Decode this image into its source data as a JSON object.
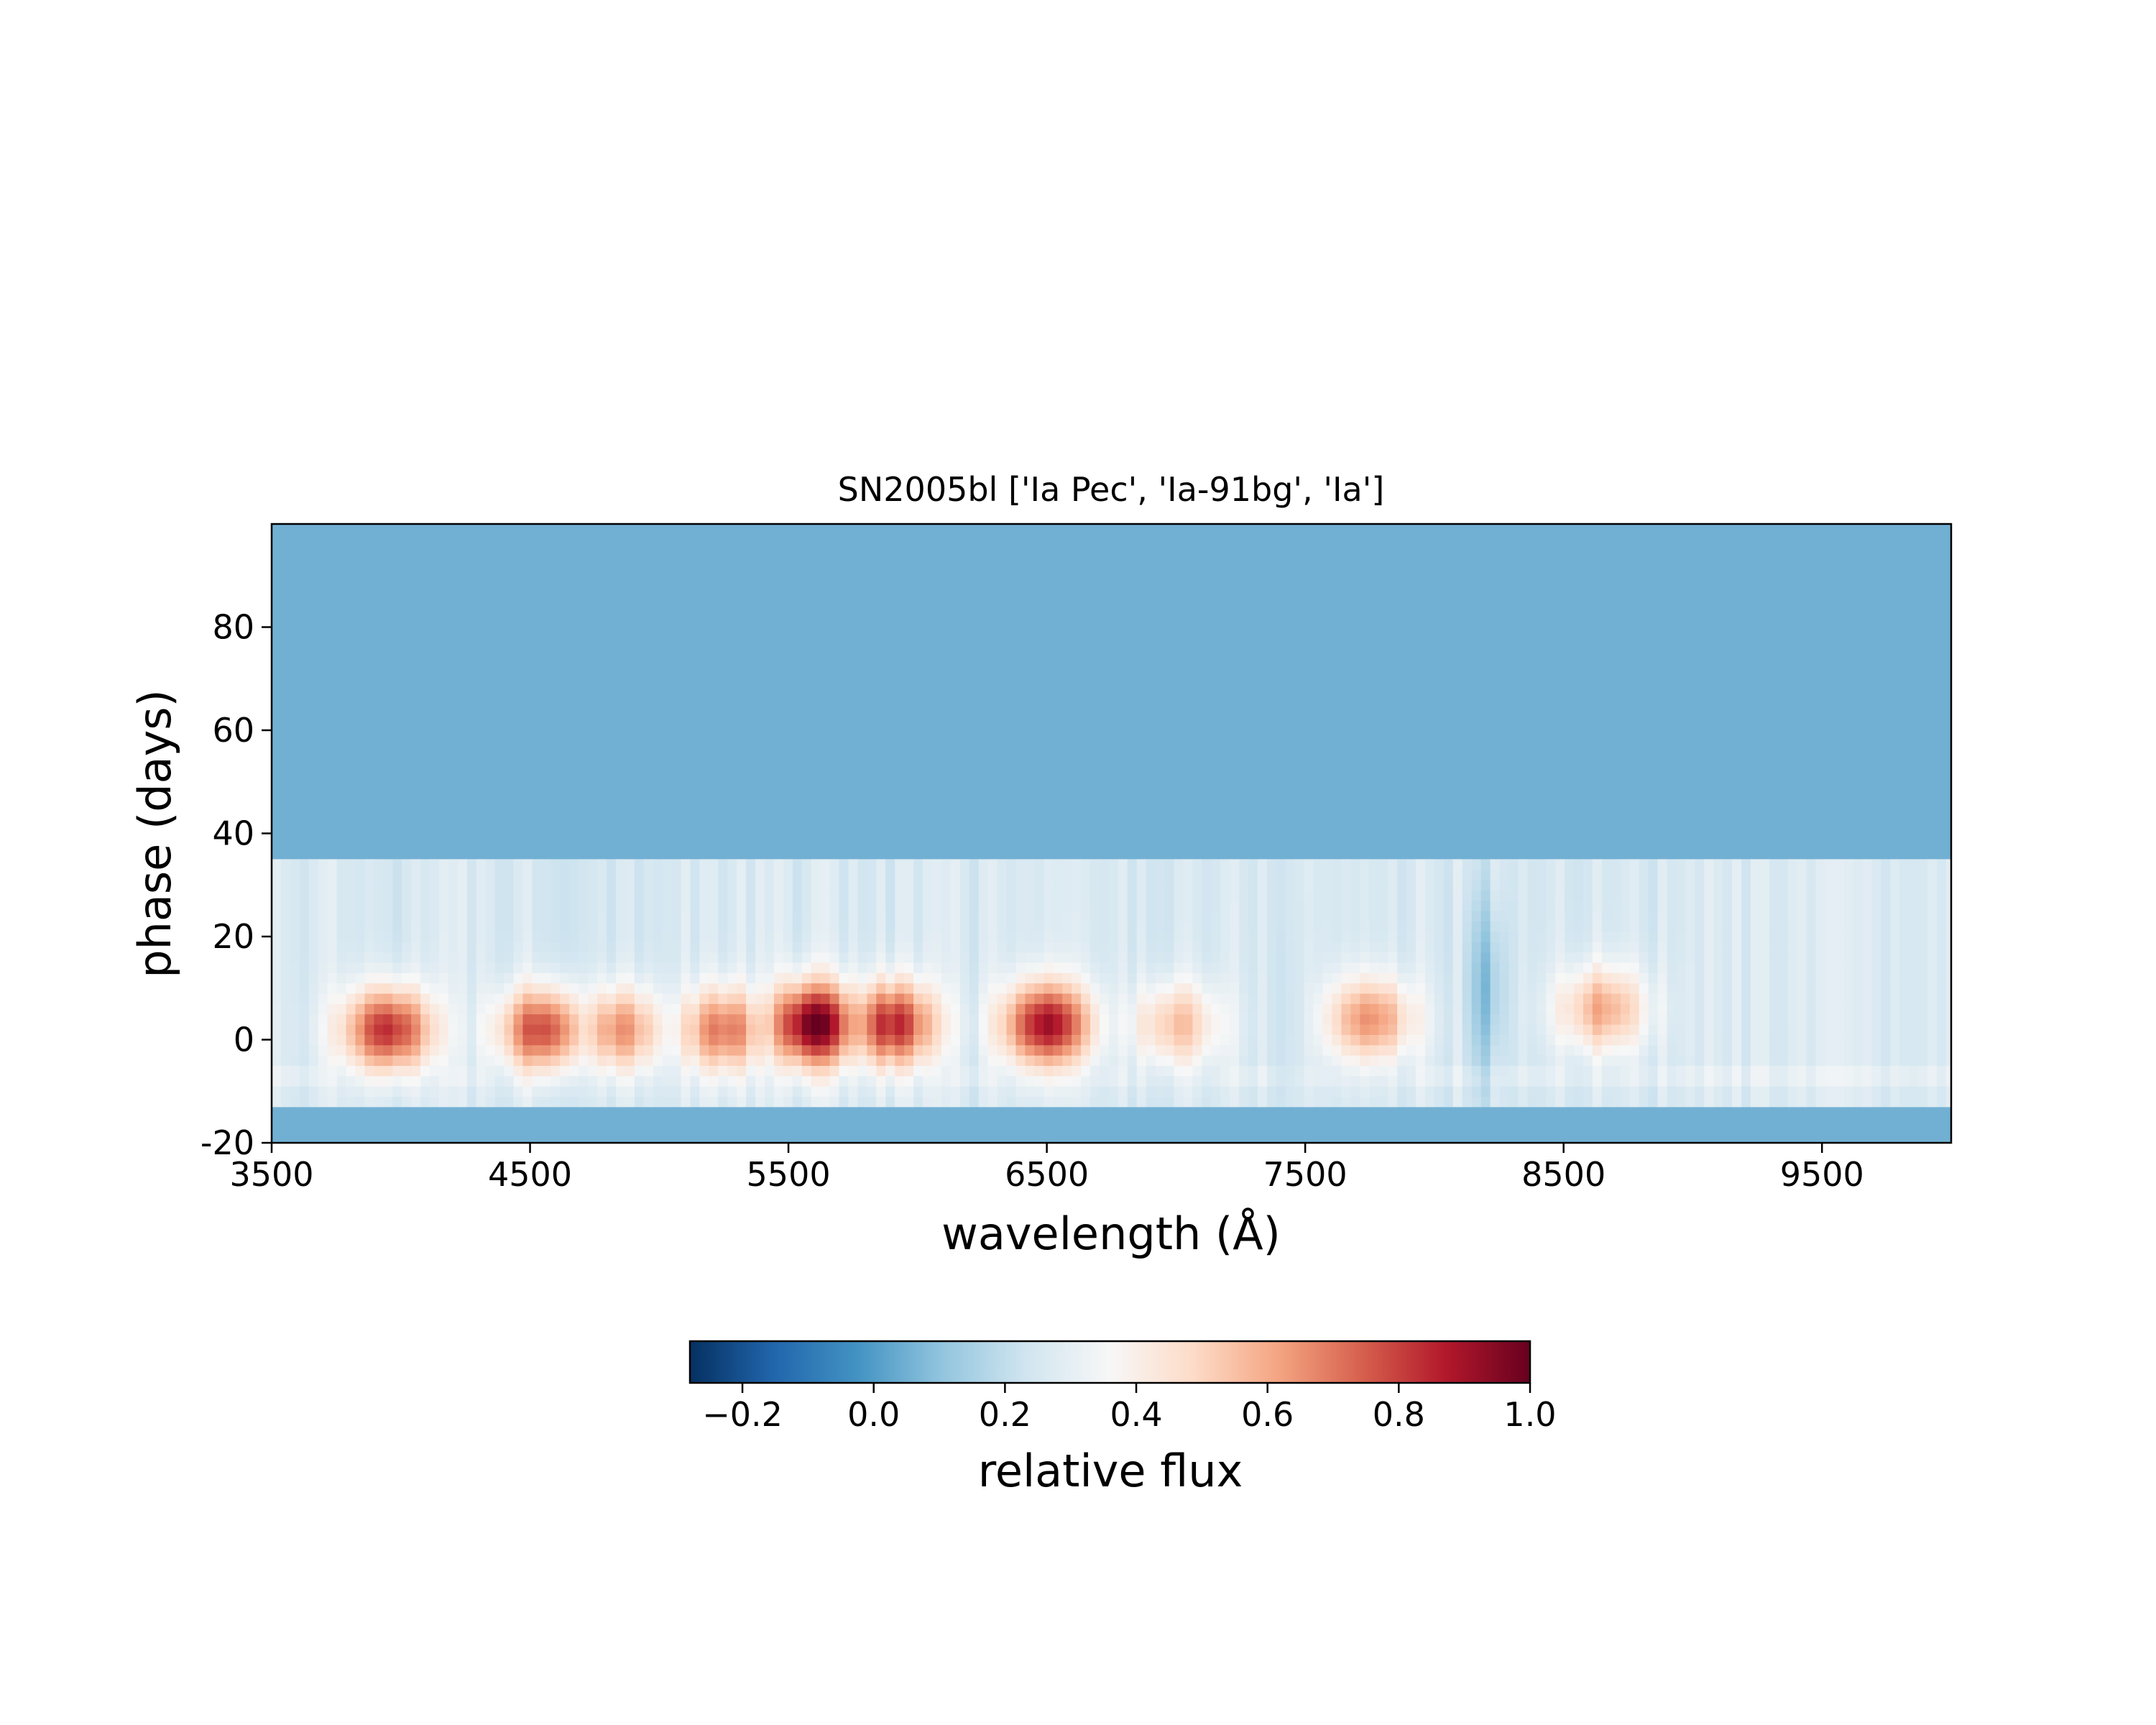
{
  "chart_data": {
    "type": "heatmap",
    "title": "SN2005bl ['Ia Pec', 'Ia-91bg', 'Ia']",
    "xlabel": "wavelength (Å)",
    "ylabel": "phase (days)",
    "xlim": [
      3500,
      10000
    ],
    "ylim": [
      -20,
      100
    ],
    "xticks": [
      3500,
      4500,
      5500,
      6500,
      7500,
      8500,
      9500
    ],
    "yticks": [
      -20,
      0,
      20,
      40,
      60,
      80
    ],
    "grid": false,
    "colormap": "RdBu_r",
    "colormap_stops": [
      "#053061",
      "#2166ac",
      "#4393c3",
      "#92c5de",
      "#d1e5f0",
      "#f7f7f7",
      "#fddbc7",
      "#f4a582",
      "#d6604d",
      "#b2182b",
      "#67001f"
    ],
    "background_value": 0.05,
    "colorbar": {
      "label": "relative flux",
      "vmin": -0.28,
      "vmax": 1.0,
      "ticks": [
        -0.2,
        0.0,
        0.2,
        0.4,
        0.6,
        0.8,
        1.0
      ],
      "tick_labels": [
        "−0.2",
        "0.0",
        "0.2",
        "0.4",
        "0.6",
        "0.8",
        "1.0"
      ],
      "placement": "bottom"
    },
    "phase_bands": [
      {
        "phase_range": [
          34,
          100
        ],
        "value": 0.05
      },
      {
        "phase_range": [
          -13,
          -20
        ],
        "value": 0.05
      }
    ],
    "flux_features": [
      {
        "wavelength": 3950,
        "phase": 2,
        "peak_flux": 0.85
      },
      {
        "wavelength": 4550,
        "phase": 2,
        "peak_flux": 0.8
      },
      {
        "wavelength": 4850,
        "phase": 2,
        "peak_flux": 0.65
      },
      {
        "wavelength": 5250,
        "phase": 2,
        "peak_flux": 0.7
      },
      {
        "wavelength": 5600,
        "phase": 3,
        "peak_flux": 1.0
      },
      {
        "wavelength": 5900,
        "phase": 3,
        "peak_flux": 0.85
      },
      {
        "wavelength": 6500,
        "phase": 3,
        "peak_flux": 0.9
      },
      {
        "wavelength": 7000,
        "phase": 3,
        "peak_flux": 0.55
      },
      {
        "wavelength": 7750,
        "phase": 4,
        "peak_flux": 0.65
      },
      {
        "wavelength": 8650,
        "phase": 6,
        "peak_flux": 0.6
      }
    ],
    "flux_troughs": [
      {
        "wavelength": 7450,
        "phase": 5,
        "min_flux": 0.25
      },
      {
        "wavelength": 8200,
        "phase": 10,
        "min_flux": 0.1
      }
    ]
  }
}
